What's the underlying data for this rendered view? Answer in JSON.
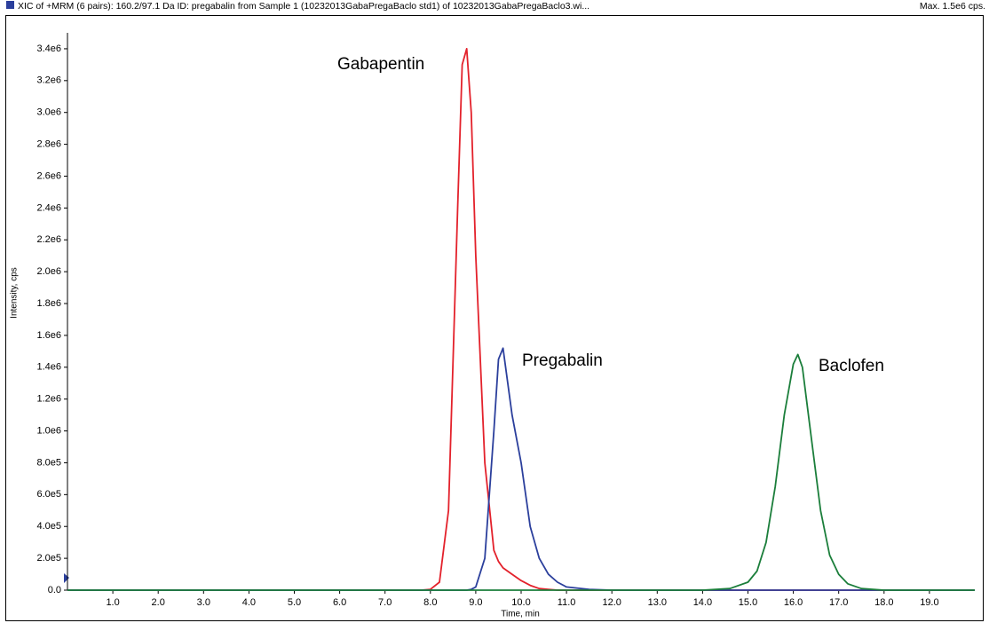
{
  "chart_data": {
    "type": "line",
    "title": "XIC of +MRM (6 pairs): 160.2/97.1 Da ID: pregabalin from Sample 1 (10232013GabaPregaBaclo std1) of 10232013GabaPregaBaclo3.wi...",
    "subtitle": "Max. 1.5e6 cps.",
    "x_label": "Time, min",
    "y_label": "Intensity, cps",
    "x": [
      0,
      7.8,
      8.0,
      8.2,
      8.4,
      8.6,
      8.7,
      8.8,
      8.9,
      9.0,
      9.2,
      9.4,
      9.5,
      9.6,
      9.8,
      10.0,
      10.2,
      10.4,
      10.6,
      10.8,
      11.0,
      11.5,
      12.0,
      14.0,
      14.6,
      15.0,
      15.2,
      15.4,
      15.6,
      15.8,
      16.0,
      16.1,
      16.2,
      16.4,
      16.6,
      16.8,
      17.0,
      17.2,
      17.5,
      18.0,
      20.0
    ],
    "series": [
      {
        "name": "Gabapentin",
        "color": "#e3212b",
        "values": [
          0,
          0,
          5000.0,
          50000.0,
          500000.0,
          2400000.0,
          3300000.0,
          3400000.0,
          3000000.0,
          2100000.0,
          800000.0,
          250000.0,
          180000.0,
          140000.0,
          100000.0,
          60000.0,
          30000.0,
          10000.0,
          5000.0,
          0,
          0,
          0,
          0,
          0,
          0,
          0,
          0,
          0,
          0,
          0,
          0,
          0,
          0,
          0,
          0,
          0,
          0,
          0,
          0,
          0,
          0
        ]
      },
      {
        "name": "Pregabalin",
        "color": "#2b3f9c",
        "values": [
          0,
          0,
          0,
          0,
          0,
          0,
          0,
          0,
          5000.0,
          20000.0,
          200000.0,
          1000000.0,
          1450000.0,
          1520000.0,
          1100000.0,
          800000.0,
          400000.0,
          200000.0,
          100000.0,
          50000.0,
          20000.0,
          5000.0,
          0,
          0,
          0,
          0,
          0,
          0,
          0,
          0,
          0,
          0,
          0,
          0,
          0,
          0,
          0,
          0,
          0,
          0,
          0
        ]
      },
      {
        "name": "Baclofen",
        "color": "#1b7e3b",
        "values": [
          0,
          0,
          0,
          0,
          0,
          0,
          0,
          0,
          0,
          0,
          0,
          0,
          0,
          0,
          0,
          0,
          0,
          0,
          0,
          0,
          0,
          0,
          0,
          0,
          10000.0,
          50000.0,
          120000.0,
          300000.0,
          650000.0,
          1100000.0,
          1420000.0,
          1480000.0,
          1400000.0,
          950000.0,
          500000.0,
          220000.0,
          100000.0,
          40000.0,
          10000.0,
          0,
          0
        ]
      }
    ],
    "xlim": [
      0,
      20
    ],
    "ylim": [
      0,
      3500000
    ],
    "xticks": [
      {
        "value": 1,
        "label": "1.0"
      },
      {
        "value": 2,
        "label": "2.0"
      },
      {
        "value": 3,
        "label": "3.0"
      },
      {
        "value": 4,
        "label": "4.0"
      },
      {
        "value": 5,
        "label": "5.0"
      },
      {
        "value": 6,
        "label": "6.0"
      },
      {
        "value": 7,
        "label": "7.0"
      },
      {
        "value": 8,
        "label": "8.0"
      },
      {
        "value": 9,
        "label": "9.0"
      },
      {
        "value": 10,
        "label": "10.0"
      },
      {
        "value": 11,
        "label": "11.0"
      },
      {
        "value": 12,
        "label": "12.0"
      },
      {
        "value": 13,
        "label": "13.0"
      },
      {
        "value": 14,
        "label": "14.0"
      },
      {
        "value": 15,
        "label": "15.0"
      },
      {
        "value": 16,
        "label": "16.0"
      },
      {
        "value": 17,
        "label": "17.0"
      },
      {
        "value": 18,
        "label": "18.0"
      },
      {
        "value": 19,
        "label": "19.0"
      }
    ],
    "yticks": [
      {
        "value": 0,
        "label": "0.0"
      },
      {
        "value": 200000,
        "label": "2.0e5"
      },
      {
        "value": 400000,
        "label": "4.0e5"
      },
      {
        "value": 600000,
        "label": "6.0e5"
      },
      {
        "value": 800000,
        "label": "8.0e5"
      },
      {
        "value": 1000000,
        "label": "1.0e6"
      },
      {
        "value": 1200000,
        "label": "1.2e6"
      },
      {
        "value": 1400000,
        "label": "1.4e6"
      },
      {
        "value": 1600000,
        "label": "1.6e6"
      },
      {
        "value": 1800000,
        "label": "1.8e6"
      },
      {
        "value": 2000000,
        "label": "2.0e6"
      },
      {
        "value": 2200000,
        "label": "2.2e6"
      },
      {
        "value": 2400000,
        "label": "2.4e6"
      },
      {
        "value": 2600000,
        "label": "2.6e6"
      },
      {
        "value": 2800000,
        "label": "2.8e6"
      },
      {
        "value": 3000000,
        "label": "3.0e6"
      },
      {
        "value": 3200000,
        "label": "3.2e6"
      },
      {
        "value": 3400000,
        "label": "3.4e6"
      }
    ],
    "grid": false
  }
}
